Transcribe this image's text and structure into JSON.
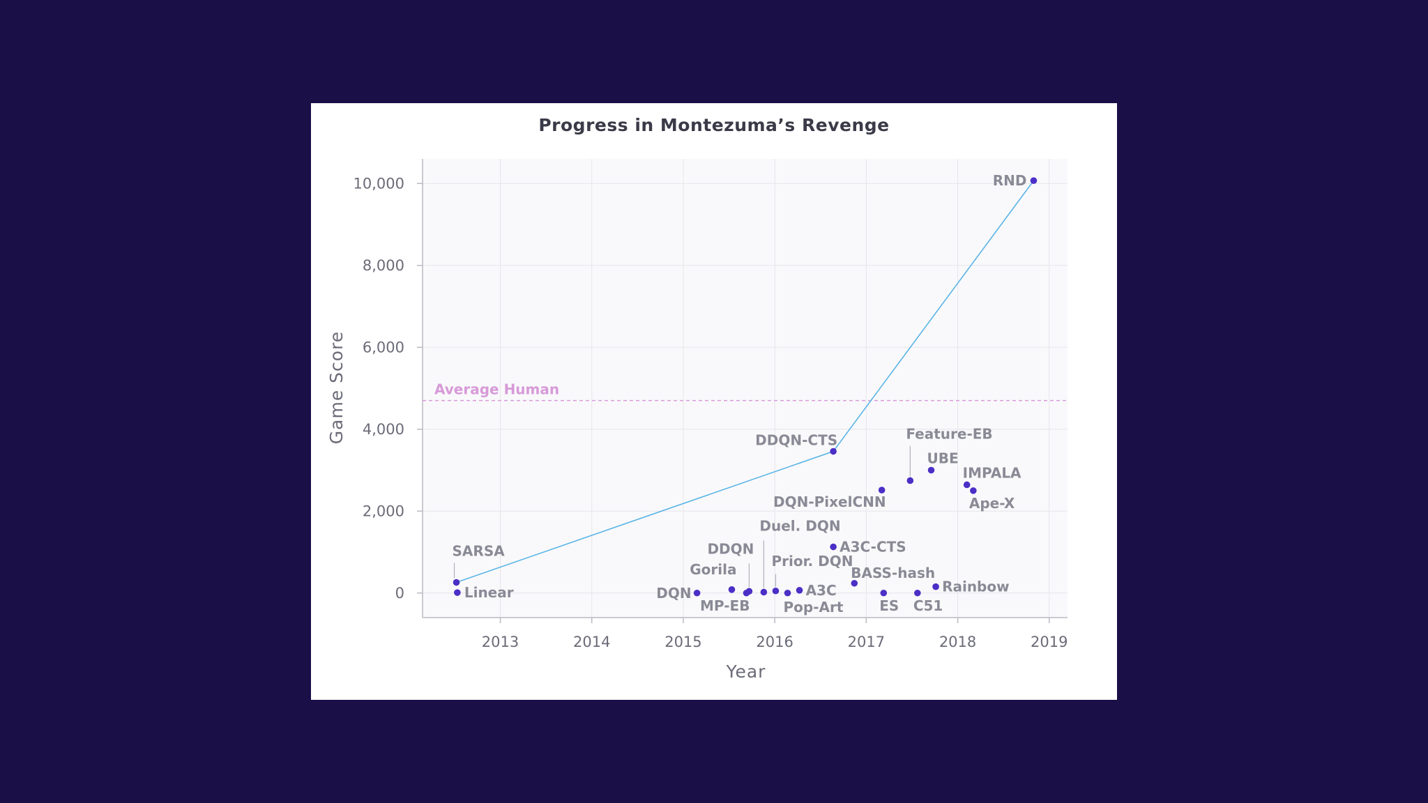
{
  "chart_data": {
    "type": "scatter",
    "title": "Progress in Montezuma’s Revenge",
    "xlabel": "Year",
    "ylabel": "Game Score",
    "xlim": [
      2012.15,
      2019.2
    ],
    "ylim": [
      -600,
      10600
    ],
    "x_ticks": [
      2013,
      2014,
      2015,
      2016,
      2017,
      2018,
      2019
    ],
    "y_ticks": [
      0,
      2000,
      4000,
      6000,
      8000,
      10000
    ],
    "y_tick_labels": [
      "0",
      "2,000",
      "4,000",
      "6,000",
      "8,000",
      "10,000"
    ],
    "grid": true,
    "reference_line": {
      "label": "Average Human",
      "value": 4700,
      "color": "#d79ad8"
    },
    "line_color": "#5bb4e6",
    "point_color": "#4b2fc6",
    "frontier": [
      "SARSA",
      "DDQN-CTS",
      "RND"
    ],
    "points": [
      {
        "label": "SARSA",
        "x": 2012.52,
        "y": 259
      },
      {
        "label": "Linear",
        "x": 2012.53,
        "y": 10
      },
      {
        "label": "DQN",
        "x": 2015.15,
        "y": 0
      },
      {
        "label": "Gorila",
        "x": 2015.53,
        "y": 84
      },
      {
        "label": "MP-EB",
        "x": 2015.69,
        "y": 0
      },
      {
        "label": "DDQN",
        "x": 2015.72,
        "y": 42
      },
      {
        "label": "Duel. DQN",
        "x": 2015.88,
        "y": 22
      },
      {
        "label": "Prior. DQN",
        "x": 2016.01,
        "y": 51
      },
      {
        "label": "Pop-Art",
        "x": 2016.14,
        "y": 0
      },
      {
        "label": "A3C",
        "x": 2016.27,
        "y": 67
      },
      {
        "label": "A3C-CTS",
        "x": 2016.64,
        "y": 1127
      },
      {
        "label": "DDQN-CTS",
        "x": 2016.64,
        "y": 3459
      },
      {
        "label": "BASS-hash",
        "x": 2016.87,
        "y": 238
      },
      {
        "label": "DQN-PixelCNN",
        "x": 2017.17,
        "y": 2514
      },
      {
        "label": "ES",
        "x": 2017.19,
        "y": 0
      },
      {
        "label": "Feature-EB",
        "x": 2017.48,
        "y": 2745
      },
      {
        "label": "C51",
        "x": 2017.56,
        "y": 0
      },
      {
        "label": "UBE",
        "x": 2017.71,
        "y": 3000
      },
      {
        "label": "Rainbow",
        "x": 2017.76,
        "y": 154
      },
      {
        "label": "IMPALA",
        "x": 2018.1,
        "y": 2643
      },
      {
        "label": "Ape-X",
        "x": 2018.17,
        "y": 2500
      },
      {
        "label": "RND",
        "x": 2018.83,
        "y": 10070
      }
    ]
  }
}
